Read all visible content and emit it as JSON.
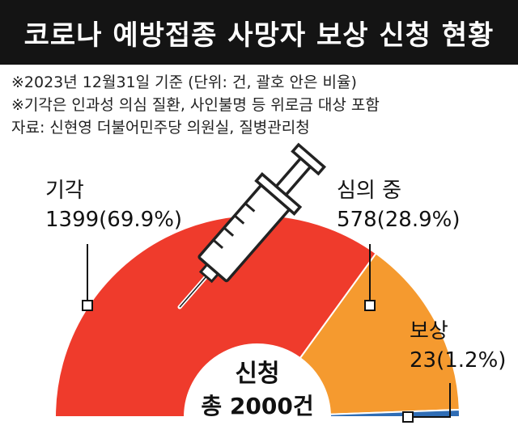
{
  "title": "코로나 예방접종 사망자 보상 신청 현황",
  "notes": [
    "※2023년 12월31일 기준  (단위: 건, 괄호 안은 비율)",
    "※기각은 인과성 의심 질환, 사인불명 등 위로금 대상 포함",
    "자료: 신현영 더불어민주당 의원실, 질병관리청"
  ],
  "center": {
    "line1": "신청",
    "line2": "총 2000건"
  },
  "chart_data": {
    "type": "pie",
    "subtype": "semicircle-donut",
    "total": 2000,
    "unit": "건",
    "categories": [
      "기각",
      "심의 중",
      "보상"
    ],
    "values": [
      1399,
      578,
      23
    ],
    "percents": [
      "69.9%",
      "28.9%",
      "1.2%"
    ],
    "value_labels": [
      "1399(69.9%)",
      "578(28.9%)",
      "23(1.2%)"
    ],
    "colors": [
      "#ef3b2c",
      "#f59a2f",
      "#2f6db5"
    ]
  }
}
